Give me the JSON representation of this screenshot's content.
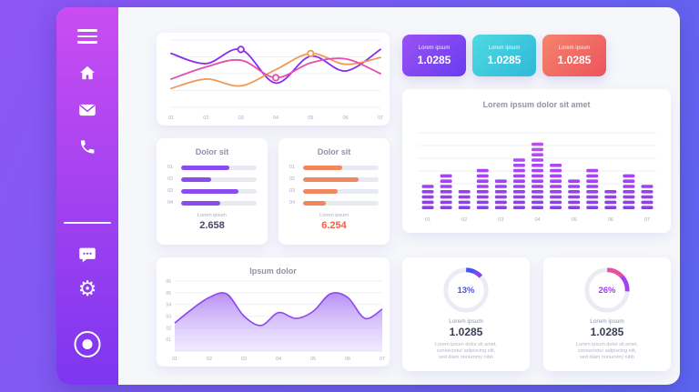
{
  "theme": {
    "bg_gradient_from": "#8d55f4",
    "bg_gradient_to": "#5b66f0",
    "sidebar_gradient_from": "#c94df2",
    "sidebar_gradient_to": "#7d36ef",
    "panel_bg": "#f6f7fb",
    "card_bg": "#ffffff",
    "muted_text": "#9094ab",
    "dark_text": "#3b3e57",
    "axis_text": "#a9adc2"
  },
  "sidebar": {
    "icons": [
      "menu-icon",
      "home-icon",
      "mail-icon",
      "phone-icon",
      "chat-icon",
      "gear-icon",
      "record-icon"
    ]
  },
  "stat_cards": [
    {
      "label": "Lorem ipsum",
      "value": "1.0285",
      "from": "#9a52f2",
      "to": "#6a3cf0"
    },
    {
      "label": "Lorem ipsum",
      "value": "1.0285",
      "from": "#4fd9e2",
      "to": "#2fb9d8"
    },
    {
      "label": "Lorem ipsum",
      "value": "1.0285",
      "from": "#f5846b",
      "to": "#ec545e"
    }
  ],
  "chart_data": [
    {
      "type": "line",
      "categories": [
        "01",
        "02",
        "03",
        "04",
        "05",
        "06",
        "07"
      ],
      "ylim": [
        0,
        10
      ],
      "grid": true,
      "series": [
        {
          "name": "series-purple",
          "color": "#8a2bee",
          "marker_index": 2,
          "values": [
            8,
            6.5,
            8.6,
            3.6,
            7.6,
            5.4,
            8.6
          ]
        },
        {
          "name": "series-orange",
          "color": "#f29a55",
          "marker_index": 4,
          "values": [
            2.8,
            4.2,
            3.2,
            5.6,
            8.0,
            6.4,
            7.4
          ]
        },
        {
          "name": "series-pink",
          "color": "#e44fae",
          "marker_index": 3,
          "values": [
            4.2,
            6.0,
            7.0,
            4.4,
            6.6,
            7.2,
            5.0
          ]
        }
      ]
    },
    {
      "type": "bar",
      "variant": "segmented",
      "title": "Lorem ipsum dolor sit amet",
      "categories": [
        "01",
        "02",
        "03",
        "04",
        "05",
        "06",
        "07"
      ],
      "values": [
        5,
        7,
        4,
        8,
        6,
        10,
        13,
        9,
        6,
        8,
        4,
        7,
        5
      ],
      "bar_color_from": "#8a3cf0",
      "bar_color_to": "#c44ff2"
    },
    {
      "type": "bar",
      "variant": "progress",
      "title": "Dolor sit",
      "categories": [
        "01",
        "02",
        "03",
        "04"
      ],
      "values": [
        0.64,
        0.4,
        0.76,
        0.52
      ],
      "bar_color": "#8a4cf0",
      "footer_label": "Lorem ipsum",
      "footer_value": "2.658",
      "footer_color": "#4a4566"
    },
    {
      "type": "bar",
      "variant": "progress",
      "title": "Dolor sit",
      "categories": [
        "01",
        "02",
        "03",
        "04"
      ],
      "values": [
        0.52,
        0.74,
        0.46,
        0.3
      ],
      "bar_color": "#f0875f",
      "footer_label": "Lorem ipsum",
      "footer_value": "6.254",
      "footer_color": "#ef5f4a"
    },
    {
      "type": "area",
      "title": "Ipsum dolor",
      "categories": [
        "01",
        "02",
        "03",
        "04",
        "05",
        "06",
        "07"
      ],
      "y_ticks": [
        "01",
        "02",
        "03",
        "04",
        "05",
        "06"
      ],
      "ylim": [
        0,
        6
      ],
      "values": [
        2.4,
        3.6,
        4.6,
        4.9,
        3.0,
        2.2,
        3.3,
        2.8,
        3.4,
        4.9,
        4.6,
        2.8,
        3.6
      ],
      "line_color": "#8f46f0",
      "fill_from": "#b38af6",
      "fill_to": "#e6d9fc"
    },
    {
      "type": "pie",
      "variant": "donut",
      "percent": 13,
      "percent_label": "13%",
      "percent_color": "#4b55ec",
      "segments": [
        {
          "color": "#4456ee",
          "value": 7
        },
        {
          "color": "#8a3ff2",
          "value": 6
        }
      ],
      "label": "Lorem ipsum",
      "value": "1.0285",
      "description": "Lorem ipsum dolor sit amet,\nconsectetur adipiscing elit,\nsed diam nonummy nibh"
    },
    {
      "type": "pie",
      "variant": "donut",
      "percent": 26,
      "percent_label": "26%",
      "percent_color": "#a23df0",
      "segments": [
        {
          "color": "#e84f9e",
          "value": 13
        },
        {
          "color": "#a43ff2",
          "value": 13
        }
      ],
      "label": "Lorem ipsum",
      "value": "1.0285",
      "description": "Lorem ipsum dolor sit amet,\nconsectetur adipiscing elit,\nsed diam nonummy nibh"
    }
  ]
}
